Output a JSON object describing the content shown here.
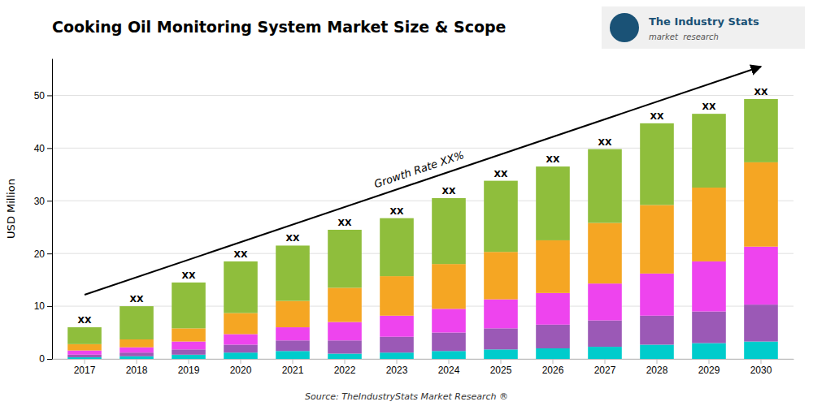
{
  "chart_data": {
    "type": "bar",
    "stacked": true,
    "title": "Cooking Oil Monitoring System Market Size & Scope",
    "ylabel": "USD Million",
    "categories": [
      "2017",
      "2018",
      "2019",
      "2020",
      "2021",
      "2022",
      "2023",
      "2024",
      "2025",
      "2026",
      "2027",
      "2028",
      "2029",
      "2030"
    ],
    "series": [
      {
        "color": "#00cccc",
        "values": [
          0.3,
          0.5,
          0.8,
          1.2,
          1.5,
          1.0,
          1.2,
          1.5,
          1.8,
          2.0,
          2.3,
          2.7,
          3.0,
          3.3
        ]
      },
      {
        "color": "#9b59b6",
        "values": [
          0.5,
          0.7,
          1.0,
          1.5,
          2.0,
          2.5,
          3.0,
          3.5,
          4.0,
          4.5,
          5.0,
          5.5,
          6.0,
          7.0
        ]
      },
      {
        "color": "#ee44ee",
        "values": [
          0.8,
          1.0,
          1.5,
          2.0,
          2.5,
          3.5,
          4.0,
          4.5,
          5.5,
          6.0,
          7.0,
          8.0,
          9.5,
          11.0
        ]
      },
      {
        "color": "#f5a623",
        "values": [
          1.2,
          1.5,
          2.5,
          4.0,
          5.0,
          6.5,
          7.5,
          8.5,
          9.0,
          10.0,
          11.5,
          13.0,
          14.0,
          16.0
        ]
      },
      {
        "color": "#8fbe3c",
        "values": [
          3.2,
          6.3,
          8.7,
          9.8,
          10.5,
          11.0,
          11.0,
          12.5,
          13.5,
          14.0,
          14.0,
          15.5,
          14.0,
          12.0
        ]
      }
    ],
    "ylim": [
      0,
      57
    ],
    "yticks": [
      0,
      10,
      20,
      30,
      40,
      50
    ],
    "grid": true,
    "bar_label": "XX",
    "annotations": [
      "Growth Rate XX%"
    ],
    "source": "Source: TheIndustryStats Market Research ®",
    "logo_texts": [
      "The Industry Stats",
      "market  research"
    ]
  }
}
